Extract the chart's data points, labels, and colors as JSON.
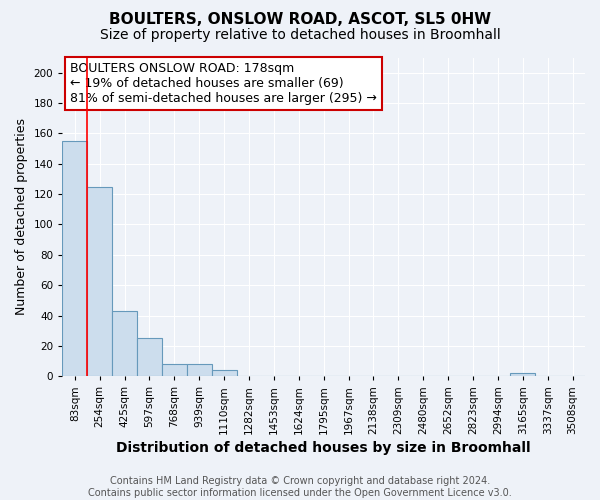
{
  "title": "BOULTERS, ONSLOW ROAD, ASCOT, SL5 0HW",
  "subtitle": "Size of property relative to detached houses in Broomhall",
  "xlabel": "Distribution of detached houses by size in Broomhall",
  "ylabel": "Number of detached properties",
  "bar_color": "#ccdded",
  "bar_edge_color": "#6699bb",
  "categories": [
    "83sqm",
    "254sqm",
    "425sqm",
    "597sqm",
    "768sqm",
    "939sqm",
    "1110sqm",
    "1282sqm",
    "1453sqm",
    "1624sqm",
    "1795sqm",
    "1967sqm",
    "2138sqm",
    "2309sqm",
    "2480sqm",
    "2652sqm",
    "2823sqm",
    "2994sqm",
    "3165sqm",
    "3337sqm",
    "3508sqm"
  ],
  "values": [
    155,
    125,
    43,
    25,
    8,
    8,
    4,
    0,
    0,
    0,
    0,
    0,
    0,
    0,
    0,
    0,
    0,
    0,
    2,
    0,
    0
  ],
  "ylim": [
    0,
    210
  ],
  "yticks": [
    0,
    20,
    40,
    60,
    80,
    100,
    120,
    140,
    160,
    180,
    200
  ],
  "red_line_x": 0.5,
  "annotation_text": "BOULTERS ONSLOW ROAD: 178sqm\n← 19% of detached houses are smaller (69)\n81% of semi-detached houses are larger (295) →",
  "annotation_box_color": "#ffffff",
  "annotation_box_edge": "#cc0000",
  "footer_text": "Contains HM Land Registry data © Crown copyright and database right 2024.\nContains public sector information licensed under the Open Government Licence v3.0.",
  "background_color": "#eef2f8",
  "grid_color": "#ffffff",
  "title_fontsize": 11,
  "subtitle_fontsize": 10,
  "xlabel_fontsize": 10,
  "ylabel_fontsize": 9,
  "tick_fontsize": 7.5,
  "annotation_fontsize": 9,
  "footer_fontsize": 7
}
